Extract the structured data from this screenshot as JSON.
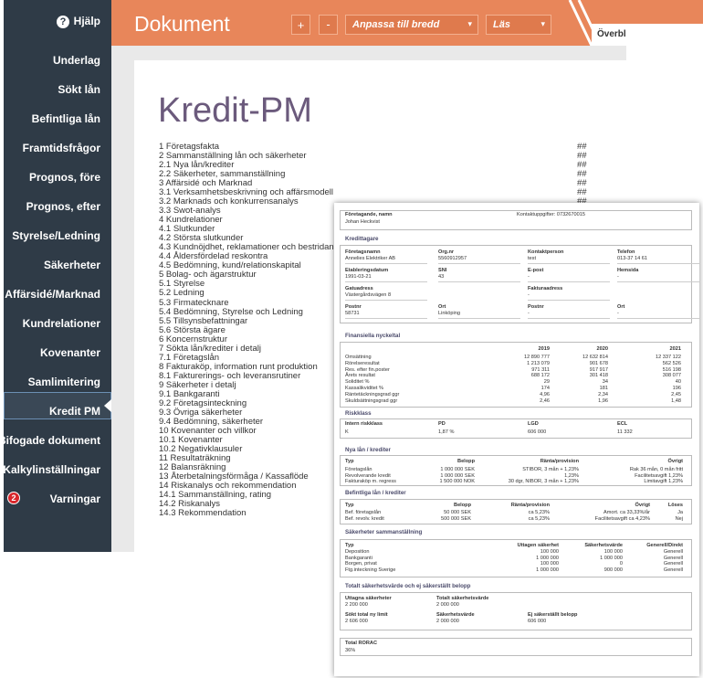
{
  "sidebar": {
    "help": "Hjälp",
    "items": [
      {
        "label": "Underlag"
      },
      {
        "label": "Sökt lån"
      },
      {
        "label": "Befintliga lån"
      },
      {
        "label": "Framtidsfrågor"
      },
      {
        "label": "Prognos, före"
      },
      {
        "label": "Prognos, efter"
      },
      {
        "label": "Styrelse/Ledning"
      },
      {
        "label": "Säkerheter"
      },
      {
        "label": "Affärsidé/Marknad"
      },
      {
        "label": "Kundrelationer"
      },
      {
        "label": "Kovenanter"
      },
      {
        "label": "Samlimitering"
      },
      {
        "label": "Kredit PM",
        "active": true
      },
      {
        "label": "Bifogade dokument"
      },
      {
        "label": "Kalkylinställningar"
      },
      {
        "label": "Varningar",
        "badge": "2"
      }
    ]
  },
  "toolbar": {
    "title": "Dokument",
    "buttons": [
      "+",
      "-"
    ],
    "zoom": "Anpassa till bredd",
    "mode": "Läs",
    "tab": "Överbl"
  },
  "document": {
    "title": "Kredit-PM",
    "toc": [
      {
        "label": "1 Företagsfakta",
        "page": "##"
      },
      {
        "label": "2 Sammanställning lån och säkerheter",
        "page": "##"
      },
      {
        "label": "2.1 Nya lån/krediter",
        "page": "##"
      },
      {
        "label": "2.2 Säkerheter, sammanställning",
        "page": "##"
      },
      {
        "label": "3 Affärsidé och Marknad",
        "page": "##"
      },
      {
        "label": "3.1 Verksamhetsbeskrivning och affärsmodell",
        "page": "##"
      },
      {
        "label": "3.2 Marknads och konkurrensanalys",
        "page": "##"
      },
      {
        "label": "3.3 Swot-analys",
        "page": "##"
      },
      {
        "label": "4 Kundrelationer",
        "page": "##"
      },
      {
        "label": "4.1 Slutkunder",
        "page": "##"
      },
      {
        "label": "4.2 Största slutkunder",
        "page": "##"
      },
      {
        "label": "4.3 Kundnöjdhet, reklamationer och bestridande",
        "page": "##"
      },
      {
        "label": "4.4 Åldersfördelad reskontra",
        "page": "##"
      },
      {
        "label": "4.5 Bedömning, kund/relationskapital",
        "page": "##"
      },
      {
        "label": "5 Bolag- och ägarstruktur",
        "page": "##"
      },
      {
        "label": "5.1 Styrelse",
        "page": "##"
      },
      {
        "label": "5.2 Ledning",
        "page": "##"
      },
      {
        "label": "5.3 Firmatecknare",
        "page": "##"
      },
      {
        "label": "5.4 Bedömning, Styrelse och Ledning",
        "page": "##"
      },
      {
        "label": "5.5 Tillsynsbefattningar",
        "page": "##"
      },
      {
        "label": "5.6 Största ägare",
        "page": "##"
      },
      {
        "label": "6 Koncernstruktur",
        "page": "##"
      },
      {
        "label": "7 Sökta lån/krediter i detalj",
        "page": "##"
      },
      {
        "label": "7.1 Företagslån",
        "page": "##"
      },
      {
        "label": "8 Fakturaköp, information runt produktion",
        "page": "##"
      },
      {
        "label": "8.1 Fakturerings- och leveransrutiner",
        "page": "##"
      },
      {
        "label": "9 Säkerheter i detalj",
        "page": "##"
      },
      {
        "label": "9.1 Bankgaranti",
        "page": "##"
      },
      {
        "label": "9.2 Företagsinteckning",
        "page": "##"
      },
      {
        "label": "9.3 Övriga säkerheter",
        "page": "##"
      },
      {
        "label": "9.4 Bedömning, säkerheter",
        "page": "##"
      },
      {
        "label": "10 Kovenanter och villkor",
        "page": "##"
      },
      {
        "label": "10.1 Kovenanter",
        "page": "##"
      },
      {
        "label": "10.2 Negativklausuler",
        "page": "##"
      },
      {
        "label": "11 Resultaträkning",
        "page": "##"
      },
      {
        "label": "12 Balansräkning",
        "page": "##"
      },
      {
        "label": "13 Återbetalningsförmåga / Kassaflöde",
        "page": "##"
      },
      {
        "label": "14 Riskanalys och rekommendation",
        "page": "##"
      },
      {
        "label": "14.1 Sammanställning, rating",
        "page": "##"
      },
      {
        "label": "14.2 Riskanalys",
        "page": "##"
      },
      {
        "label": "14.3 Rekommendation",
        "page": "##"
      }
    ]
  },
  "preview": {
    "owner": {
      "label": "Företagande, namn",
      "value": "Johan Heckvist",
      "contact": "Kontaktuppgifter: 0732670015"
    },
    "borrower": {
      "title": "Kredittagare",
      "rows": [
        [
          {
            "label": "Företagsnamn",
            "value": "Annelies Elektriker AB"
          },
          {
            "label": "Org.nr",
            "value": "5560912957"
          },
          {
            "label": "Kontaktperson",
            "value": "test"
          },
          {
            "label": "Telefon",
            "value": "013-37 14 61"
          }
        ],
        [
          {
            "label": "Etableringsdatum",
            "value": "1991-03-21"
          },
          {
            "label": "SNI",
            "value": "43"
          },
          {
            "label": "E-post",
            "value": "-"
          },
          {
            "label": "Hemsida",
            "value": "-"
          }
        ],
        [
          {
            "label": "Gatuadress",
            "value": "Västergårdsvägen 8"
          },
          {
            "label": "Fakturaadress",
            "value": "-"
          }
        ],
        [
          {
            "label": "Postnr",
            "value": "58731"
          },
          {
            "label": "Ort",
            "value": "Linköping"
          },
          {
            "label": "Postnr",
            "value": "-"
          },
          {
            "label": "Ort",
            "value": "-"
          }
        ]
      ]
    },
    "financials": {
      "title": "Finansiella nyckeltal",
      "years": [
        "2019",
        "2020",
        "2021"
      ],
      "rows": [
        {
          "label": "Omsättning",
          "values": [
            "12 890 777",
            "12 632 814",
            "12 337 122"
          ]
        },
        {
          "label": "Rörelseresultat",
          "values": [
            "1 213 079",
            "901 678",
            "562 526"
          ]
        },
        {
          "label": "Res. efter fin.poster",
          "values": [
            "971 311",
            "917 917",
            "516 198"
          ]
        },
        {
          "label": "Årets resultat",
          "values": [
            "688 172",
            "301 418",
            "308 077"
          ]
        },
        {
          "label": "Soliditet %",
          "values": [
            "29",
            "34",
            "40"
          ]
        },
        {
          "label": "Kassalikviditet %",
          "values": [
            "174",
            "181",
            "196"
          ]
        },
        {
          "label": "Räntetäckningsgrad ggr",
          "values": [
            "4,96",
            "2,34",
            "2,45"
          ]
        },
        {
          "label": "Skuldsättningsgrad ggr",
          "values": [
            "2,46",
            "1,96",
            "1,48"
          ]
        }
      ]
    },
    "risk": {
      "title": "Riskklass",
      "headers": [
        "Intern riskklass",
        "PD",
        "LGD",
        "ECL"
      ],
      "values": [
        "K",
        "1,87 %",
        "606 000",
        "11 332"
      ]
    },
    "new_loans": {
      "title": "Nya lån / krediter",
      "headers": [
        "Typ",
        "Belopp",
        "Ränta/provision",
        "Övrigt"
      ],
      "rows": [
        [
          "Företagslån",
          "1 000 000 SEK",
          "STIBOR, 3 mån + 1,23%",
          "Rak 36 mån, 0 mån fritt"
        ],
        [
          "Revolverande kredit",
          "1 000 000 SEK",
          "1,23%",
          "Facilitetsavgift 1,23%"
        ],
        [
          "Fakturaköp m. regress",
          "1 500 000 NOK",
          "30 dgr, NIBOR, 3 mån + 1,23%",
          "Limitavgift 1,23%"
        ]
      ]
    },
    "existing_loans": {
      "title": "Befintliga lån / krediter",
      "headers": [
        "Typ",
        "Belopp",
        "Ränta/provision",
        "Övrigt",
        "Löses"
      ],
      "rows": [
        [
          "Bef. företagslån",
          "50 000 SEK",
          "ca 5,23%",
          "Amort. ca 33,33%/år",
          "Ja"
        ],
        [
          "Bef. revolv. kredit",
          "500 000 SEK",
          "ca 5,23%",
          "Facilitetsavgift ca 4,23%",
          "Nej"
        ]
      ]
    },
    "collateral": {
      "title": "Säkerheter sammanställning",
      "headers": [
        "Typ",
        "Uttagen säkerhet",
        "Säkerhetsvärde",
        "Generell/Direkt"
      ],
      "rows": [
        [
          "Deposition",
          "100 000",
          "100 000",
          "Generell"
        ],
        [
          "Bankgaranti",
          "1 000 000",
          "1 000 000",
          "Generell"
        ],
        [
          "Borgen, privat",
          "100 000",
          "0",
          "Generell"
        ],
        [
          "Ftg.inteckning Sverige",
          "1 000 000",
          "900 000",
          "Generell"
        ]
      ]
    },
    "totals": {
      "title": "Totalt säkerhetsvärde och ej säkerställt belopp",
      "rows": [
        [
          {
            "label": "Uttagna säkerheter",
            "value": "2 200 000"
          },
          {
            "label": "Totalt säkerhetsvärde",
            "value": "2 000 000"
          }
        ],
        [
          {
            "label": "Sökt total ny limit",
            "value": "2 606 000"
          },
          {
            "label": "Säkerhetsvärde",
            "value": "2 000 000"
          },
          {
            "label": "Ej säkerställt belopp",
            "value": "606 000"
          }
        ]
      ]
    },
    "rorac": {
      "label": "Total RORAC",
      "value": "36%"
    }
  }
}
